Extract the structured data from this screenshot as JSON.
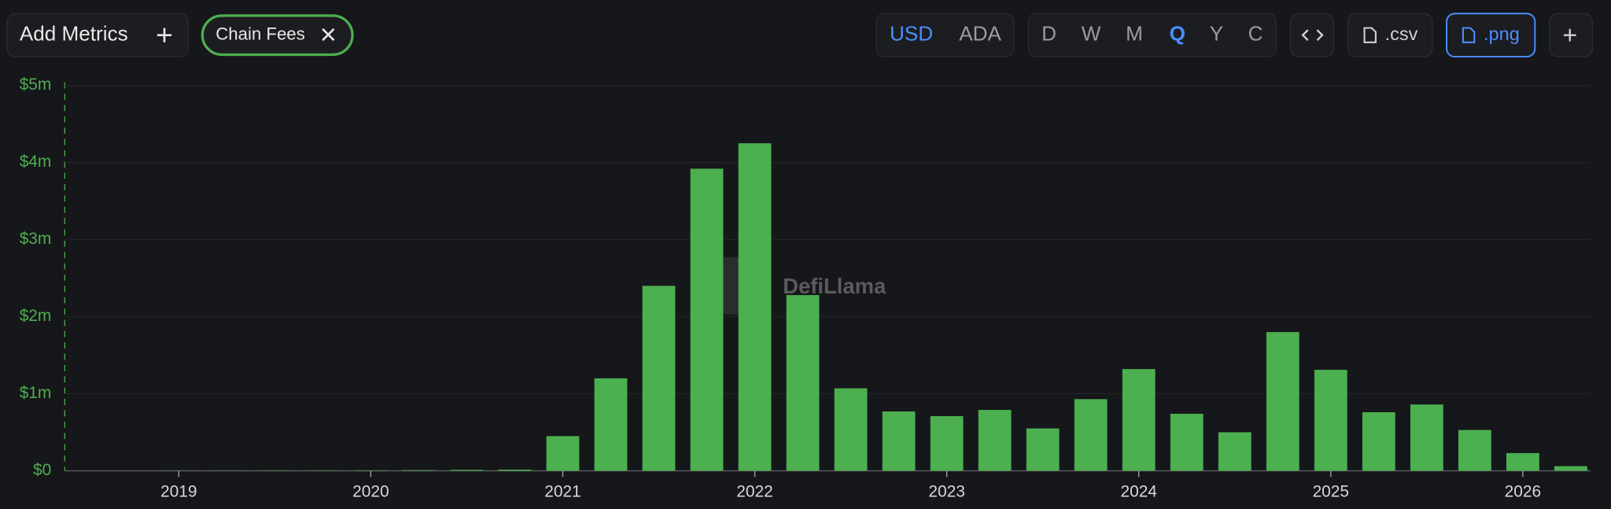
{
  "toolbar": {
    "add_metrics": "Add Metrics",
    "chip": "Chain Fees",
    "currencies": [
      "USD",
      "ADA"
    ],
    "periods": [
      "D",
      "W",
      "M",
      "Q",
      "Y",
      "C"
    ],
    "csv": ".csv",
    "png": ".png"
  },
  "watermark": "DefiLlama",
  "chart_data": {
    "type": "bar",
    "color": "#4caf50",
    "categories": [
      "2019",
      null,
      null,
      null,
      "2020",
      null,
      null,
      null,
      "2021",
      null,
      null,
      null,
      "2022",
      null,
      null,
      null,
      "2023",
      null,
      null,
      null,
      "2024",
      null,
      null,
      null,
      "2025",
      null,
      null,
      null,
      "2026",
      null
    ],
    "values": [
      1000,
      2000,
      3000,
      3000,
      5000,
      8000,
      12000,
      15000,
      450000,
      1200000,
      2400000,
      3920000,
      4250000,
      2280000,
      1070000,
      770000,
      710000,
      790000,
      550000,
      930000,
      1320000,
      740000,
      500000,
      1800000,
      1310000,
      760000,
      860000,
      530000,
      230000,
      60000
    ],
    "ylim": [
      0,
      5000000
    ],
    "yticks": [
      {
        "value": 0,
        "label": "$0"
      },
      {
        "value": 1000000,
        "label": "$1m"
      },
      {
        "value": 2000000,
        "label": "$2m"
      },
      {
        "value": 3000000,
        "label": "$3m"
      },
      {
        "value": 4000000,
        "label": "$4m"
      },
      {
        "value": 5000000,
        "label": "$5m"
      }
    ],
    "grid": true
  }
}
